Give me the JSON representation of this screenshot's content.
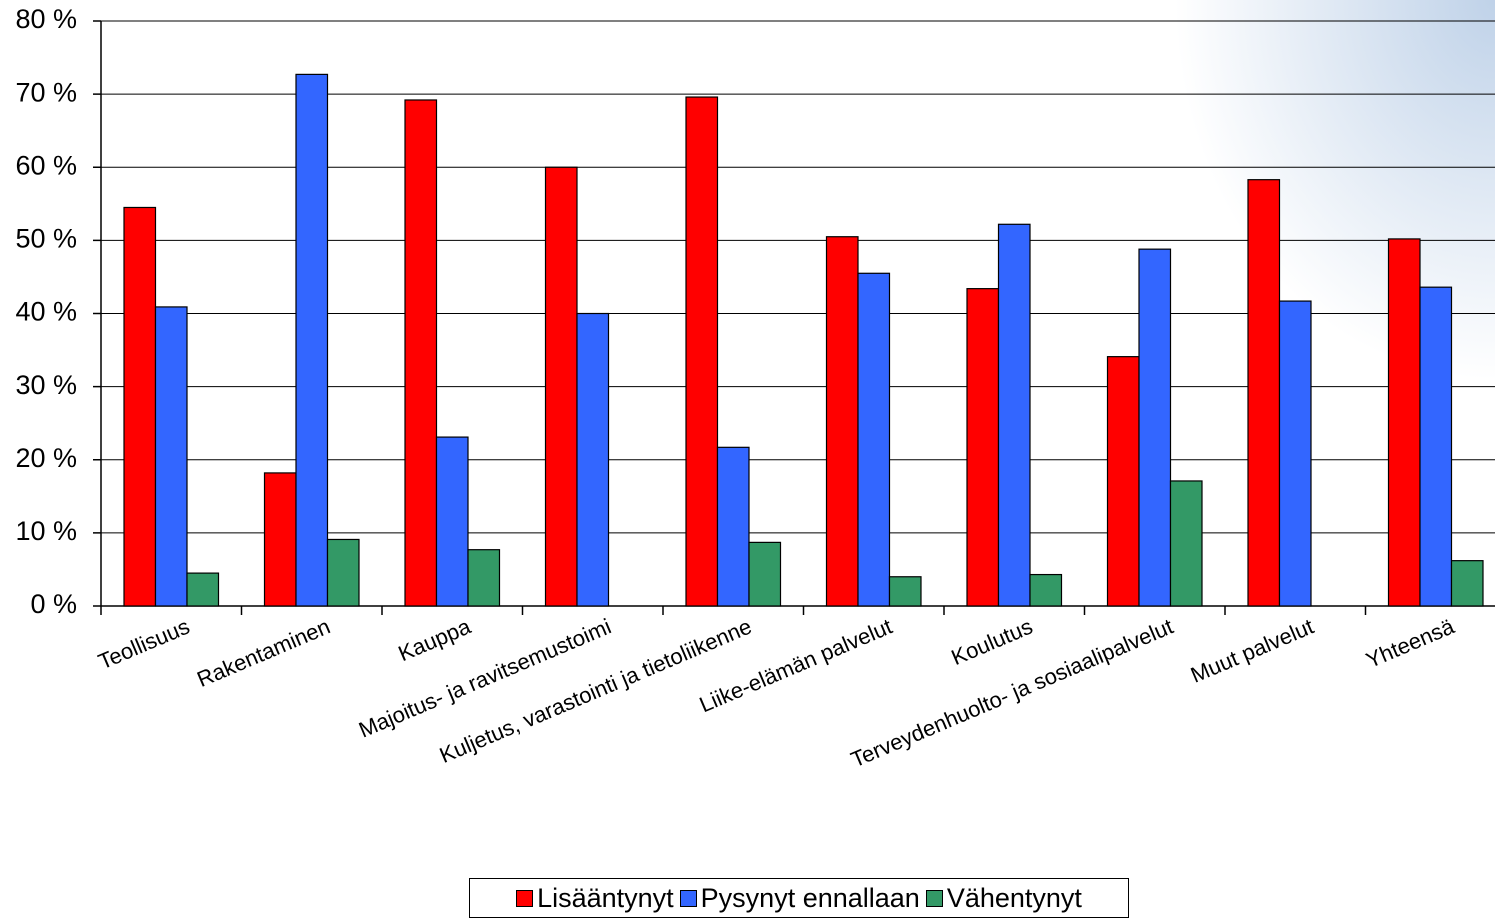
{
  "chart_data": {
    "type": "bar",
    "categories": [
      "Teollisuus",
      "Rakentaminen",
      "Kauppa",
      "Majoitus- ja ravitsemustoimi",
      "Kuljetus, varastointi ja tietoliikenne",
      "Liike-elämän palvelut",
      "Koulutus",
      "Terveydenhuolto- ja sosiaalipalvelut",
      "Muut palvelut",
      "Yhteensä"
    ],
    "series": [
      {
        "name": "Lisääntynyt",
        "color": "#ff0000",
        "values": [
          54.5,
          18.2,
          69.2,
          60.0,
          69.6,
          50.5,
          43.4,
          34.1,
          58.3,
          50.2
        ]
      },
      {
        "name": "Pysynyt ennallaan",
        "color": "#3366ff",
        "values": [
          40.9,
          72.7,
          23.1,
          40.0,
          21.7,
          45.5,
          52.2,
          48.8,
          41.7,
          43.6
        ]
      },
      {
        "name": "Vähentynyt",
        "color": "#339966",
        "values": [
          4.5,
          9.1,
          7.7,
          0,
          8.7,
          4.0,
          4.3,
          17.1,
          0,
          6.2
        ]
      }
    ],
    "ylim": [
      0,
      80
    ],
    "yticks": [
      0,
      10,
      20,
      30,
      40,
      50,
      60,
      70,
      80
    ],
    "ytick_labels": [
      "0 %",
      "10 %",
      "20 %",
      "30 %",
      "40 %",
      "50 %",
      "60 %",
      "70 %",
      "80 %"
    ],
    "grid": true,
    "legend_position": "bottom"
  }
}
